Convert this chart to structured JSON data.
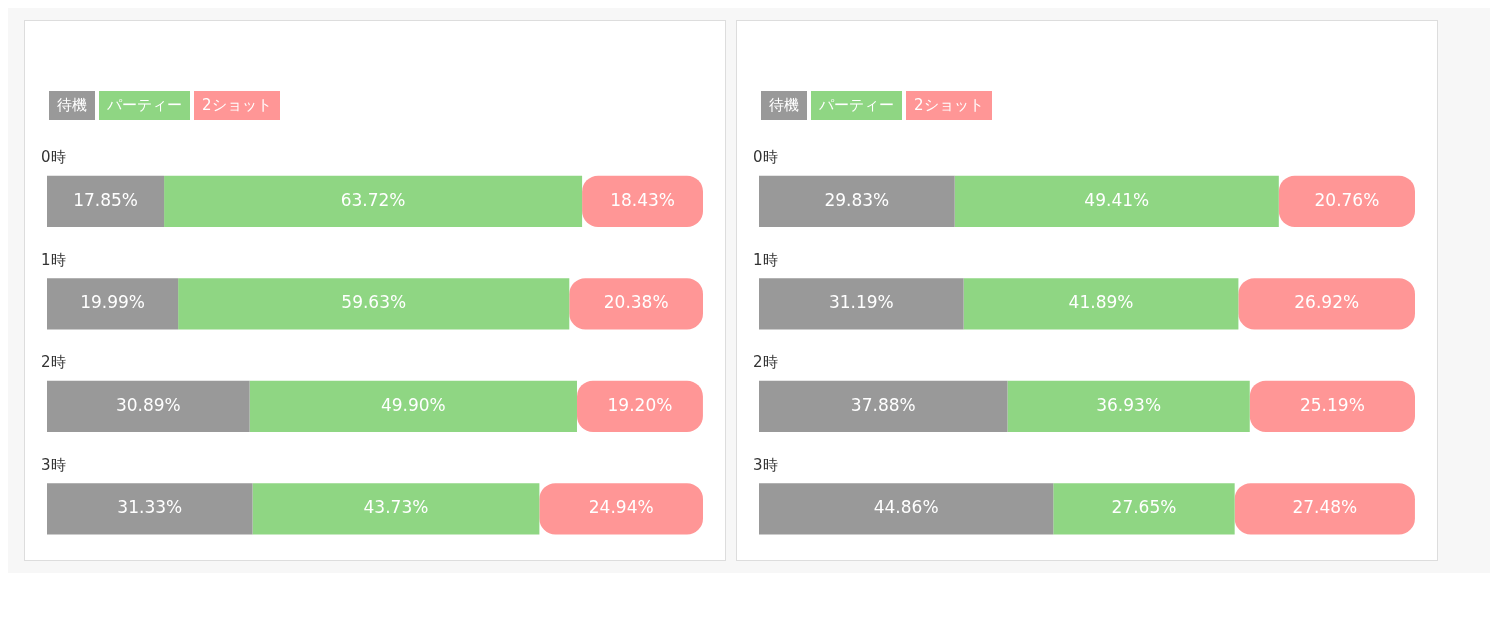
{
  "chart_data": [
    {
      "type": "bar",
      "orientation": "horizontal",
      "stacked": true,
      "legend": "top left",
      "categories": [
        "0時",
        "1時",
        "2時",
        "3時"
      ],
      "series": [
        {
          "name": "待機",
          "color": "#999999",
          "values": [
            17.85,
            19.99,
            30.89,
            31.33
          ],
          "value_labels": [
            "17.85%",
            "19.99%",
            "30.89%",
            "31.33%"
          ]
        },
        {
          "name": "パーティー",
          "color": "#8fd683",
          "values": [
            63.72,
            59.63,
            49.9,
            43.73
          ],
          "value_labels": [
            "63.72%",
            "59.63%",
            "49.90%",
            "43.73%"
          ]
        },
        {
          "name": "2ショット",
          "color": "#ff9696",
          "values": [
            18.43,
            20.38,
            19.2,
            24.94
          ],
          "value_labels": [
            "18.43%",
            "20.38%",
            "19.20%",
            "24.94%"
          ]
        }
      ]
    },
    {
      "type": "bar",
      "orientation": "horizontal",
      "stacked": true,
      "legend": "top left",
      "categories": [
        "0時",
        "1時",
        "2時",
        "3時"
      ],
      "series": [
        {
          "name": "待機",
          "color": "#999999",
          "values": [
            29.83,
            31.19,
            37.88,
            44.86
          ],
          "value_labels": [
            "29.83%",
            "31.19%",
            "37.88%",
            "44.86%"
          ]
        },
        {
          "name": "パーティー",
          "color": "#8fd683",
          "values": [
            49.41,
            41.89,
            36.93,
            27.65
          ],
          "value_labels": [
            "49.41%",
            "41.89%",
            "36.93%",
            "27.65%"
          ]
        },
        {
          "name": "2ショット",
          "color": "#ff9696",
          "values": [
            20.76,
            26.92,
            25.19,
            27.48
          ],
          "value_labels": [
            "20.76%",
            "26.92%",
            "25.19%",
            "27.48%"
          ]
        }
      ]
    }
  ]
}
